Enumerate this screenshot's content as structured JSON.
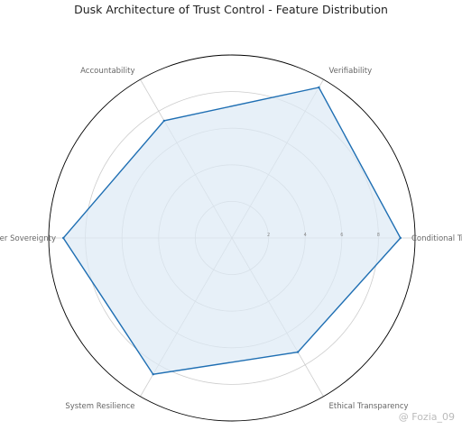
{
  "chart_data": {
    "type": "radar",
    "title": "Dusk Architecture of Trust Control - Feature Distribution",
    "categories": [
      "Conditional Trust",
      "Verifiability",
      "Accountability",
      "User Sovereignty",
      "System Resilience",
      "Ethical Transparency"
    ],
    "values": [
      9.2,
      9.5,
      7.4,
      9.2,
      8.6,
      7.2
    ],
    "rlim": [
      0,
      10
    ],
    "r_ticks": [
      2,
      4,
      6,
      8
    ],
    "grid": true,
    "colors": {
      "line": "#1f6fb3",
      "fill": "#dde9f5",
      "grid": "#cccccc",
      "outer": "#000000"
    }
  },
  "watermark": "@ Fozia_09"
}
